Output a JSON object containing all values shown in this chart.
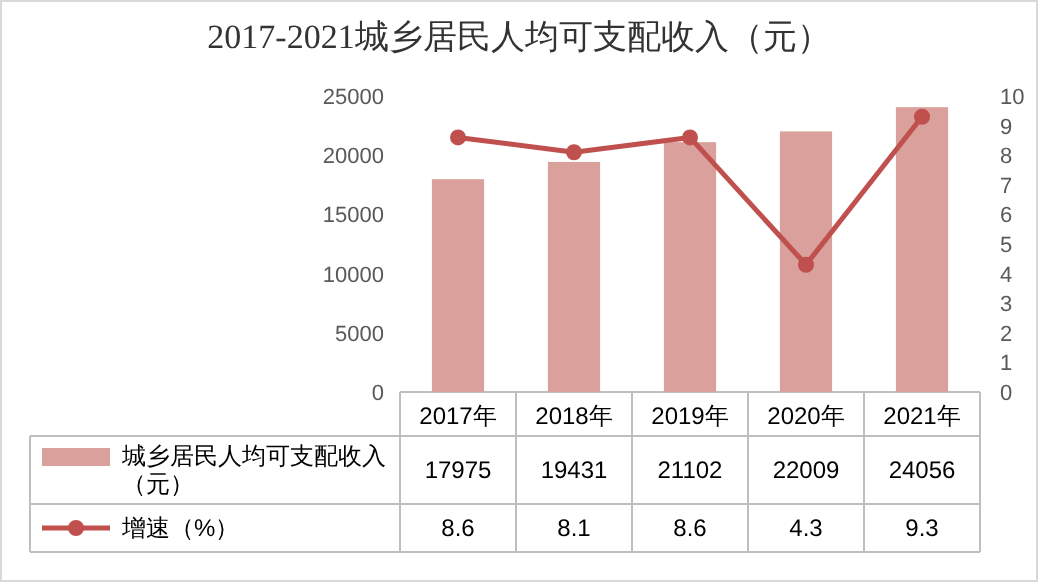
{
  "chart_data": {
    "type": "bar",
    "title": "2017-2021城乡居民人均可支配收入（元）",
    "categories": [
      "2017年",
      "2018年",
      "2019年",
      "2020年",
      "2021年"
    ],
    "series": [
      {
        "name": "城乡居民人均可支配收入（元）",
        "color": "#d9a09c",
        "values": [
          17975,
          19431,
          21102,
          22009,
          24056
        ]
      },
      {
        "name": "增速（%）",
        "type": "line",
        "axis": "y2",
        "color": "#c0504d",
        "marker": "circle",
        "values": [
          8.6,
          8.1,
          8.6,
          4.3,
          9.3
        ]
      }
    ],
    "ylim": [
      0,
      25000
    ],
    "yticks": [
      0,
      5000,
      10000,
      15000,
      20000,
      25000
    ],
    "y2lim": [
      0,
      10
    ],
    "y2ticks": [
      0,
      1,
      2,
      3,
      4,
      5,
      6,
      7,
      8,
      9,
      10
    ],
    "data_labels": true,
    "legend": "bottom left"
  }
}
